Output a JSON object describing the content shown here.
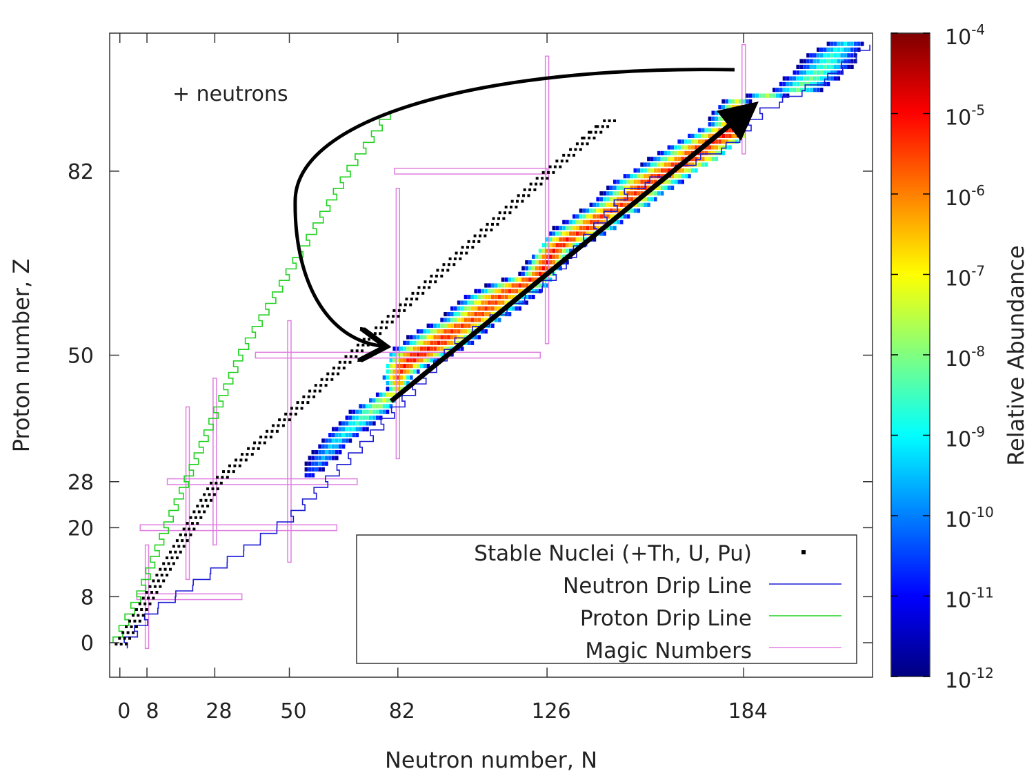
{
  "chart_data": {
    "type": "heatmap",
    "title": "",
    "xlabel": "Neutron number, N",
    "ylabel": "Proton number, Z",
    "xlim": [
      -3,
      222
    ],
    "ylim": [
      -6,
      106
    ],
    "xticks": [
      0,
      8,
      28,
      50,
      82,
      126,
      184
    ],
    "xtick_labels": [
      "0",
      "8",
      "28",
      "50",
      "82",
      "126",
      "184"
    ],
    "yticks": [
      0,
      8,
      20,
      28,
      50,
      82
    ],
    "ytick_labels": [
      "0",
      "8",
      "20",
      "28",
      "50",
      "82"
    ],
    "magic_numbers": [
      8,
      20,
      28,
      50,
      82,
      126,
      184
    ],
    "colorbar": {
      "label": "Relative Abundance",
      "scale": "log",
      "range": [
        1e-12,
        0.0001
      ],
      "tick_base": "10",
      "tick_exponents": [
        "-4",
        "-5",
        "-6",
        "-7",
        "-8",
        "-9",
        "-10",
        "-11",
        "-12"
      ]
    },
    "annotation": "+ neutrons",
    "legend": [
      {
        "label": "Stable Nuclei (+Th, U, Pu)",
        "color": "#000000",
        "marker": "square"
      },
      {
        "label": "Neutron Drip Line",
        "color": "#1b1bd6",
        "marker": "line"
      },
      {
        "label": "Proton Drip Line",
        "color": "#1fd11f",
        "marker": "line"
      },
      {
        "label": "Magic Numbers",
        "color": "#e07ee0",
        "marker": "line"
      }
    ],
    "r_process_path": [
      {
        "N": 80,
        "Z": 42
      },
      {
        "N": 100,
        "Z": 52
      },
      {
        "N": 126,
        "Z": 65
      },
      {
        "N": 150,
        "Z": 78
      },
      {
        "N": 170,
        "Z": 88
      },
      {
        "N": 184,
        "Z": 92
      }
    ],
    "abundance_band": [
      {
        "Z": 29,
        "nmin": 50,
        "nmax": 62,
        "peak": 56,
        "logmax": -10.5
      },
      {
        "Z": 32,
        "nmin": 50,
        "nmax": 66,
        "peak": 60,
        "logmax": -9.5
      },
      {
        "Z": 35,
        "nmin": 54,
        "nmax": 70,
        "peak": 64,
        "logmax": -9
      },
      {
        "Z": 38,
        "nmin": 58,
        "nmax": 76,
        "peak": 70,
        "logmax": -8.5
      },
      {
        "Z": 41,
        "nmin": 64,
        "nmax": 80,
        "peak": 76,
        "logmax": -7.5
      },
      {
        "Z": 44,
        "nmin": 76,
        "nmax": 84,
        "peak": 82,
        "logmax": -6.5
      },
      {
        "Z": 46,
        "nmin": 78,
        "nmax": 88,
        "peak": 82,
        "logmax": -5.5
      },
      {
        "Z": 48,
        "nmin": 79,
        "nmax": 94,
        "peak": 84,
        "logmax": -5
      },
      {
        "Z": 50,
        "nmin": 80,
        "nmax": 100,
        "peak": 88,
        "logmax": -4.8
      },
      {
        "Z": 52,
        "nmin": 82,
        "nmax": 104,
        "peak": 94,
        "logmax": -5
      },
      {
        "Z": 54,
        "nmin": 86,
        "nmax": 108,
        "peak": 98,
        "logmax": -5.2
      },
      {
        "Z": 56,
        "nmin": 92,
        "nmax": 112,
        "peak": 104,
        "logmax": -5.3
      },
      {
        "Z": 58,
        "nmin": 96,
        "nmax": 118,
        "peak": 108,
        "logmax": -5.3
      },
      {
        "Z": 60,
        "nmin": 100,
        "nmax": 122,
        "peak": 112,
        "logmax": -5.3
      },
      {
        "Z": 62,
        "nmin": 106,
        "nmax": 126,
        "peak": 118,
        "logmax": -5.2
      },
      {
        "Z": 64,
        "nmin": 116,
        "nmax": 128,
        "peak": 124,
        "logmax": -5
      },
      {
        "Z": 66,
        "nmin": 120,
        "nmax": 132,
        "peak": 126,
        "logmax": -4.9
      },
      {
        "Z": 68,
        "nmin": 124,
        "nmax": 136,
        "peak": 128,
        "logmax": -4.9
      },
      {
        "Z": 70,
        "nmin": 126,
        "nmax": 142,
        "peak": 132,
        "logmax": -5
      },
      {
        "Z": 72,
        "nmin": 126,
        "nmax": 146,
        "peak": 138,
        "logmax": -5.2
      },
      {
        "Z": 74,
        "nmin": 132,
        "nmax": 150,
        "peak": 142,
        "logmax": -5.3
      },
      {
        "Z": 76,
        "nmin": 136,
        "nmax": 156,
        "peak": 148,
        "logmax": -5.3
      },
      {
        "Z": 78,
        "nmin": 140,
        "nmax": 160,
        "peak": 152,
        "logmax": -5.2
      },
      {
        "Z": 80,
        "nmin": 144,
        "nmax": 166,
        "peak": 156,
        "logmax": -5.1
      },
      {
        "Z": 82,
        "nmin": 148,
        "nmax": 170,
        "peak": 162,
        "logmax": -5
      },
      {
        "Z": 84,
        "nmin": 152,
        "nmax": 176,
        "peak": 168,
        "logmax": -5
      },
      {
        "Z": 86,
        "nmin": 158,
        "nmax": 180,
        "peak": 172,
        "logmax": -5
      },
      {
        "Z": 88,
        "nmin": 162,
        "nmax": 184,
        "peak": 178,
        "logmax": -4.9
      },
      {
        "Z": 90,
        "nmin": 166,
        "nmax": 184,
        "peak": 182,
        "logmax": -5
      },
      {
        "Z": 92,
        "nmin": 170,
        "nmax": 186,
        "peak": 182,
        "logmax": -5.5
      },
      {
        "Z": 94,
        "nmin": 176,
        "nmax": 186,
        "peak": 182,
        "logmax": -7
      },
      {
        "Z": 96,
        "nmin": 188,
        "nmax": 210,
        "peak": 200,
        "logmax": -8
      },
      {
        "Z": 98,
        "nmin": 190,
        "nmax": 214,
        "peak": 204,
        "logmax": -8
      },
      {
        "Z": 100,
        "nmin": 194,
        "nmax": 218,
        "peak": 208,
        "logmax": -8.3
      },
      {
        "Z": 102,
        "nmin": 196,
        "nmax": 220,
        "peak": 210,
        "logmax": -8.5
      },
      {
        "Z": 104,
        "nmin": 200,
        "nmax": 220,
        "peak": 214,
        "logmax": -9
      }
    ]
  }
}
